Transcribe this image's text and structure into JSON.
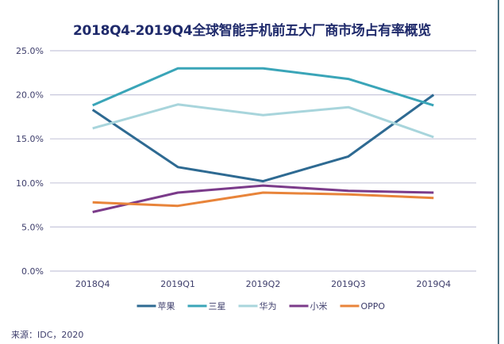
{
  "chart_data": {
    "type": "line",
    "title": "2018Q4-2019Q4全球智能手机前五大厂商市场占有率概览",
    "xlabel": "",
    "ylabel": "",
    "categories": [
      "2018Q4",
      "2019Q1",
      "2019Q2",
      "2019Q3",
      "2019Q4"
    ],
    "ylim": [
      0,
      25
    ],
    "yticks": [
      0,
      5,
      10,
      15,
      20,
      25
    ],
    "ytick_labels": [
      "0.0%",
      "5.0%",
      "10.0%",
      "15.0%",
      "20.0%",
      "25.0%"
    ],
    "grid": true,
    "legend_position": "bottom",
    "series": [
      {
        "name": "苹果",
        "color": "#2e6a92",
        "values": [
          18.3,
          11.8,
          10.2,
          13.0,
          20.0
        ]
      },
      {
        "name": "三星",
        "color": "#3aa5b8",
        "values": [
          18.8,
          23.0,
          23.0,
          21.8,
          18.8
        ]
      },
      {
        "name": "华为",
        "color": "#a8d5dc",
        "values": [
          16.2,
          18.9,
          17.7,
          18.6,
          15.2
        ]
      },
      {
        "name": "小米",
        "color": "#7b3b8a",
        "values": [
          6.7,
          8.9,
          9.7,
          9.1,
          8.9
        ]
      },
      {
        "name": "OPPO",
        "color": "#e8843a",
        "values": [
          7.8,
          7.4,
          8.9,
          8.7,
          8.3
        ]
      }
    ],
    "source": "来源：IDC，2020"
  }
}
